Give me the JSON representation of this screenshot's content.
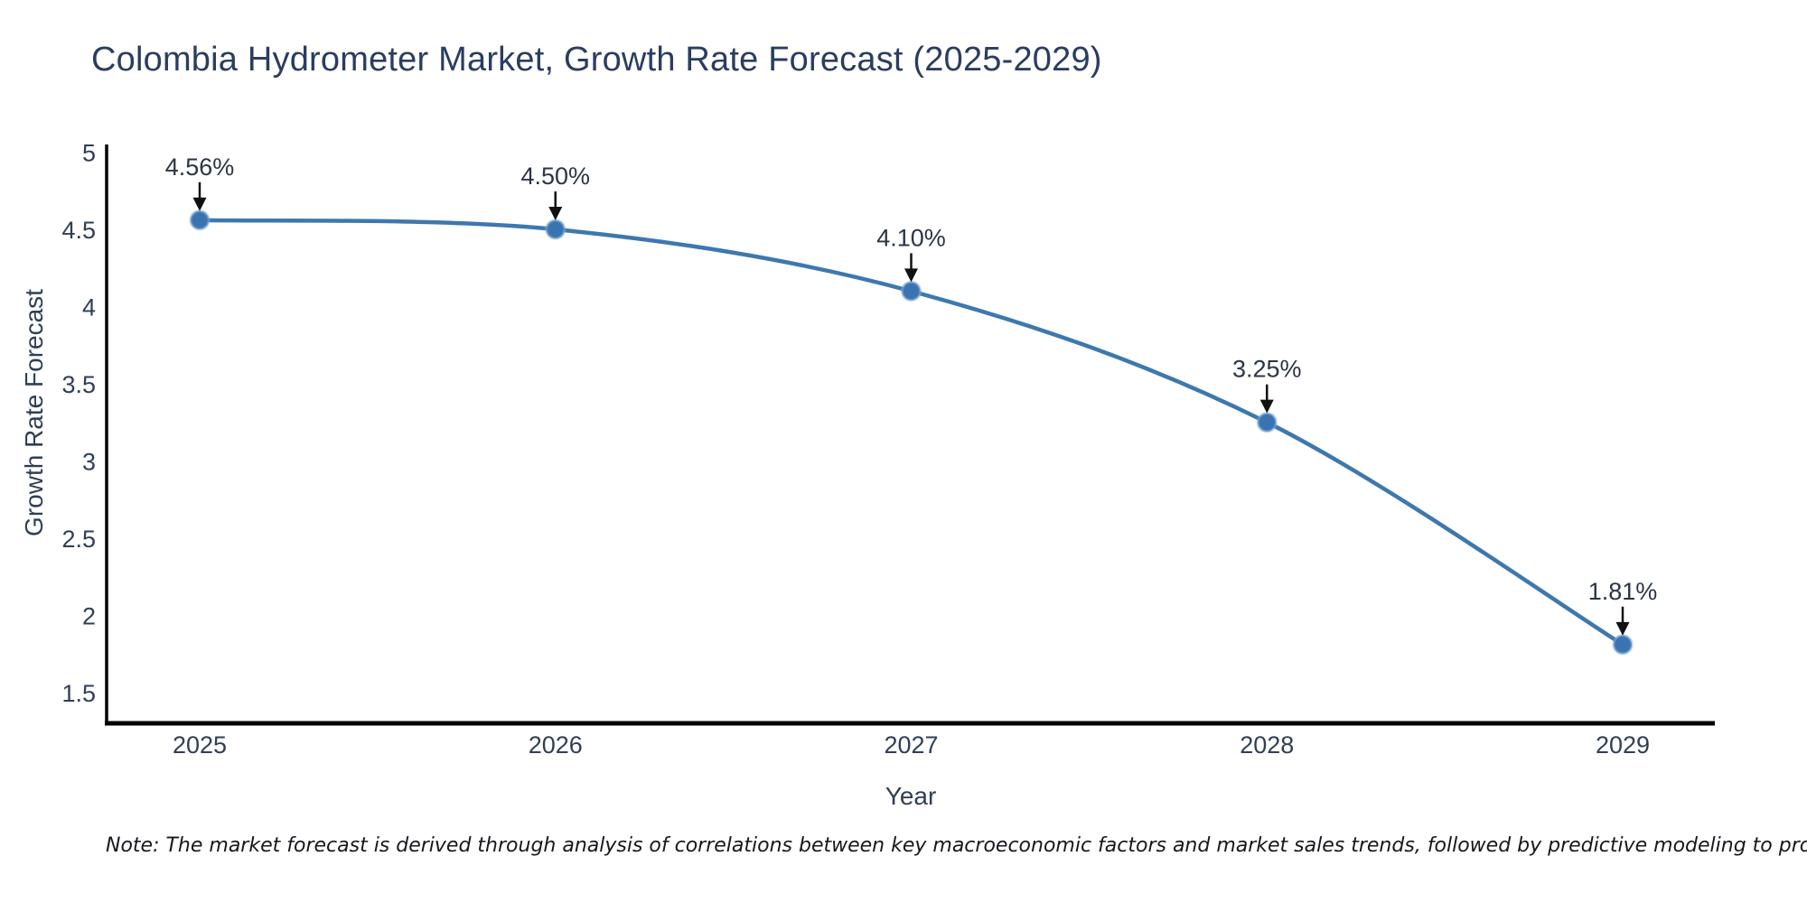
{
  "chart_data": {
    "type": "line",
    "title": "Colombia Hydrometer Market, Growth Rate Forecast (2025-2029)",
    "xlabel": "Year",
    "ylabel": "Growth Rate Forecast",
    "x": [
      2025,
      2026,
      2027,
      2028,
      2029
    ],
    "series": [
      {
        "name": "Growth Rate Forecast",
        "values": [
          4.56,
          4.5,
          4.1,
          3.25,
          1.81
        ]
      }
    ],
    "point_labels": [
      "4.56%",
      "4.50%",
      "4.10%",
      "3.25%",
      "1.81%"
    ],
    "y_ticks": [
      1.5,
      2,
      2.5,
      3,
      3.5,
      4,
      4.5,
      5
    ],
    "y_range": [
      1.3,
      5.05
    ],
    "grid": false,
    "legend_position": "none",
    "line_shape": "spline",
    "line_color": "#3d78ae",
    "marker_color": "#3a74b0",
    "axis_color": "#000000",
    "text_color": "#2f3f55",
    "annotation_text_color": "#2b3545",
    "arrow_color": "#111111"
  },
  "note": "Note: The market forecast is derived through analysis of correlations between key macroeconomic factors and market sales trends, followed by predictive modeling to project future sales"
}
